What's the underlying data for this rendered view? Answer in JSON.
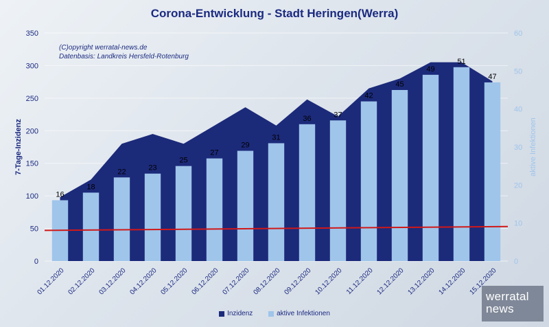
{
  "title": "Corona-Entwicklung - Stadt Heringen(Werra)",
  "copyright_lines": [
    "(C)opyright werratal-news.de",
    "Datenbasis: Landkreis Hersfeld-Rotenburg"
  ],
  "logo_lines": [
    "werratal",
    "news"
  ],
  "colors": {
    "inzidenz": "#1c2a7a",
    "aktive": "#9fc5ea",
    "threshold": "#d01818",
    "text": "#1b2a80"
  },
  "chart_data": {
    "type": "bar",
    "title": "Corona-Entwicklung - Stadt Heringen(Werra)",
    "categories": [
      "01.12.2020",
      "02.12.2020",
      "03.12.2020",
      "04.12.2020",
      "05.12.2020",
      "06.12.2020",
      "07.12.2020",
      "08.12.2020",
      "09.12.2020",
      "10.12.2020",
      "11.12.2020",
      "12.12.2020",
      "13.12.2020",
      "14.12.2020",
      "15.12.2020"
    ],
    "ylabel": "7-Tage-Inzidenz",
    "ylabel_right": "aktive Infektionen",
    "ylim": [
      0,
      350
    ],
    "ylim_right": [
      0,
      60
    ],
    "yticks": [
      0,
      50,
      100,
      150,
      200,
      250,
      300,
      350
    ],
    "yticks_right": [
      0,
      10,
      20,
      30,
      40,
      50,
      60
    ],
    "grid": true,
    "legend_position": "bottom",
    "series": [
      {
        "name": "Inzidenz",
        "type": "area",
        "axis": "left",
        "values": [
          98,
          125,
          180,
          195,
          180,
          208,
          236,
          208,
          248,
          222,
          265,
          280,
          305,
          305,
          276
        ]
      },
      {
        "name": "aktive Infektionen",
        "type": "bar",
        "axis": "right",
        "values": [
          16,
          18,
          22,
          23,
          25,
          27,
          29,
          31,
          36,
          37,
          42,
          45,
          49,
          51,
          47
        ],
        "labels": [
          "16",
          "18",
          "22",
          "23",
          "25",
          "27",
          "29",
          "31",
          "36",
          "37",
          "42",
          "45",
          "49",
          "51",
          "47"
        ]
      }
    ],
    "reference_line": {
      "axis": "left",
      "values": [
        47,
        53
      ]
    }
  }
}
